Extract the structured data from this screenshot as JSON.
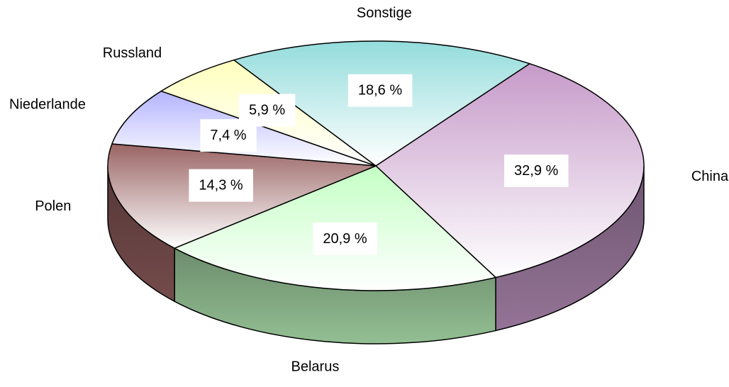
{
  "chart_data": {
    "type": "pie3d",
    "categories": [
      "China",
      "Belarus",
      "Polen",
      "Niederlande",
      "Russland",
      "Sonstige"
    ],
    "values": [
      32.9,
      20.9,
      14.3,
      7.4,
      5.9,
      18.6
    ],
    "value_labels": [
      "32,9 %",
      "20,9 %",
      "14,3 %",
      "7,4 %",
      "5,9 %",
      "18,6 %"
    ],
    "colors": [
      "#c69ac9",
      "#c4ffc4",
      "#9a6464",
      "#b4b4ff",
      "#ffffbe",
      "#94dcdc"
    ]
  }
}
